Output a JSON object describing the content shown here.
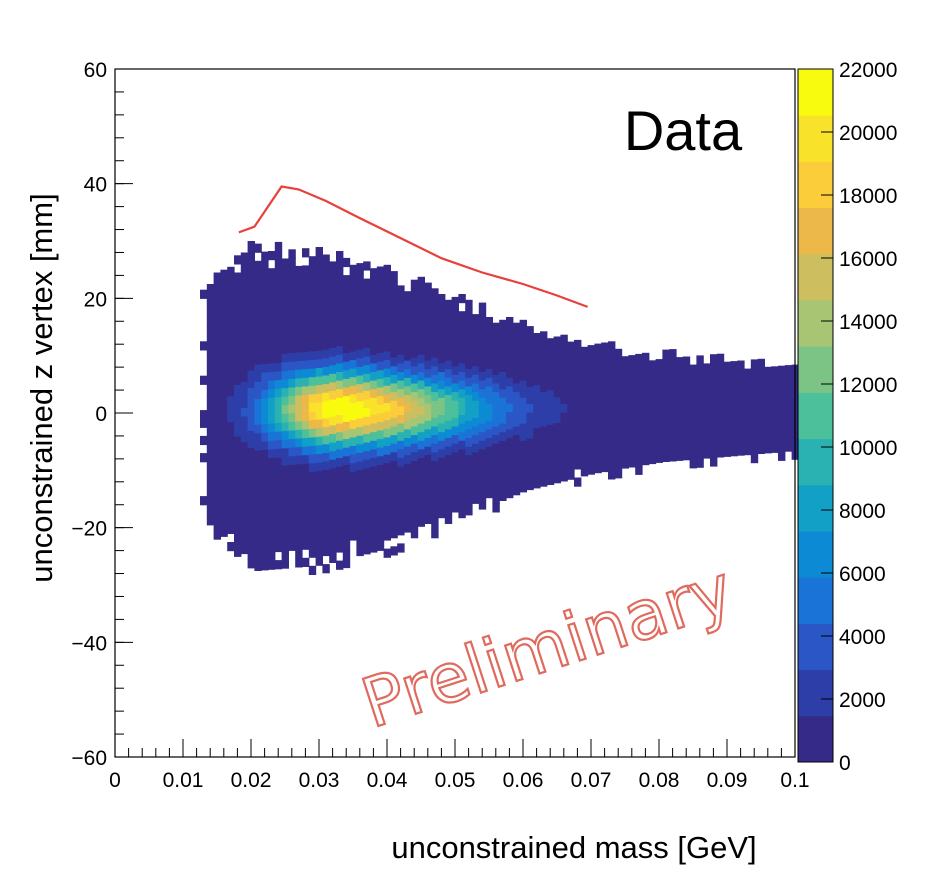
{
  "chart_data": {
    "type": "heatmap",
    "title": "",
    "xlabel": "unconstrained mass [GeV]",
    "ylabel": "unconstrained z vertex [mm]",
    "xlim": [
      0,
      0.1
    ],
    "ylim": [
      -60,
      60
    ],
    "x_ticks": [
      "0",
      "0.01",
      "0.02",
      "0.03",
      "0.04",
      "0.05",
      "0.06",
      "0.07",
      "0.08",
      "0.09",
      "0.1"
    ],
    "y_ticks": [
      "60",
      "40",
      "20",
      "0",
      "-20",
      "-40",
      "-60"
    ],
    "x_tick_values": [
      0,
      0.01,
      0.02,
      0.03,
      0.04,
      0.05,
      0.06,
      0.07,
      0.08,
      0.09,
      0.1
    ],
    "y_tick_values": [
      60,
      40,
      20,
      0,
      -20,
      -40,
      -60
    ],
    "colorbar": {
      "range": [
        0,
        22000
      ],
      "ticks": [
        "22000",
        "20000",
        "18000",
        "16000",
        "14000",
        "12000",
        "10000",
        "8000",
        "6000",
        "4000",
        "2000",
        "0"
      ],
      "tick_values": [
        22000,
        20000,
        18000,
        16000,
        14000,
        12000,
        10000,
        8000,
        6000,
        4000,
        2000,
        0
      ]
    },
    "density_model": {
      "peak_mass": 0.032,
      "peak_z": 0,
      "peak_count": 22000,
      "core_width_mass": 0.009,
      "core_width_z": 4.5,
      "halo_onset_mass": 0.0125,
      "halo_half_width_z": [
        [
          0.013,
          22
        ],
        [
          0.02,
          29
        ],
        [
          0.03,
          28
        ],
        [
          0.04,
          25
        ],
        [
          0.05,
          20
        ],
        [
          0.06,
          15
        ],
        [
          0.07,
          12
        ],
        [
          0.08,
          10
        ],
        [
          0.1,
          8
        ]
      ]
    },
    "cut_curve": {
      "color": "#e8403a",
      "points": [
        [
          0.0182,
          31.5
        ],
        [
          0.0205,
          32.5
        ],
        [
          0.0225,
          36.0
        ],
        [
          0.0245,
          39.5
        ],
        [
          0.027,
          39.0
        ],
        [
          0.031,
          37.0
        ],
        [
          0.036,
          34.0
        ],
        [
          0.042,
          30.5
        ],
        [
          0.048,
          27.0
        ],
        [
          0.054,
          24.5
        ],
        [
          0.06,
          22.5
        ],
        [
          0.065,
          20.5
        ],
        [
          0.0695,
          18.5
        ]
      ]
    },
    "annotations": {
      "data_label": "Data",
      "watermark": "Preliminary",
      "watermark_color": "#e06a5e"
    },
    "colormap": [
      "#352a87",
      "#2e3ea9",
      "#2a56c6",
      "#1a73d6",
      "#0d8ad4",
      "#12a0c6",
      "#2ab2b2",
      "#4cbf9b",
      "#7cc485",
      "#a8c573",
      "#cdbe5f",
      "#ebb849",
      "#fbcd3b",
      "#f9e32a",
      "#f9fb0e"
    ],
    "legend": "colorbar-right",
    "grid": false
  }
}
